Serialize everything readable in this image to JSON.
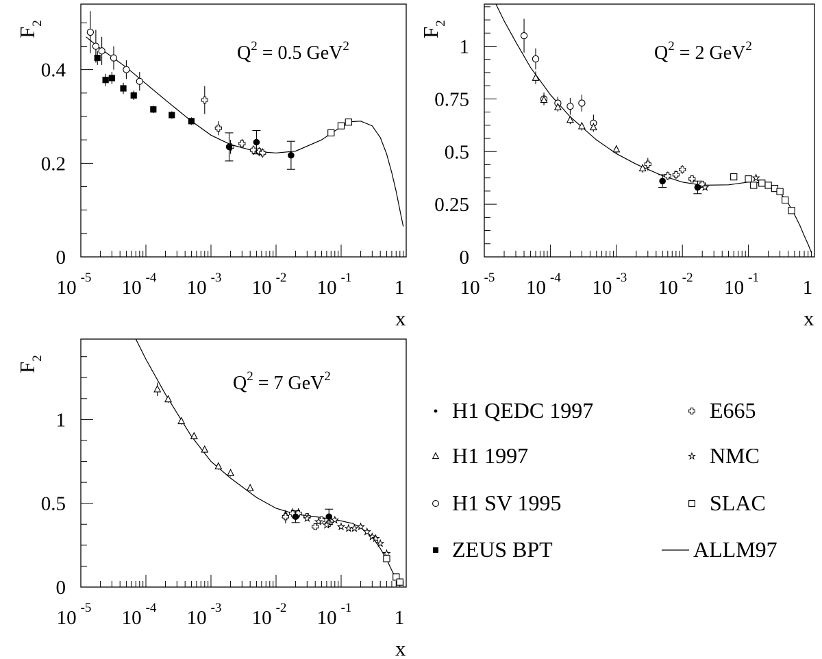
{
  "legend": [
    {
      "key": "h1qedc",
      "label": "H1 QEDC 1997",
      "symbol": "filled-circle-small"
    },
    {
      "key": "e665",
      "label": "E665",
      "symbol": "open-cross"
    },
    {
      "key": "h1_97",
      "label": "H1 1997",
      "symbol": "open-triangle"
    },
    {
      "key": "nmc",
      "label": "NMC",
      "symbol": "open-star"
    },
    {
      "key": "h1sv",
      "label": "H1 SV 1995",
      "symbol": "open-circle"
    },
    {
      "key": "slac",
      "label": "SLAC",
      "symbol": "open-square"
    },
    {
      "key": "zeus",
      "label": "ZEUS BPT",
      "symbol": "filled-square"
    },
    {
      "key": "allm",
      "label": "ALLM97",
      "symbol": "line"
    }
  ],
  "chart_data": [
    {
      "type": "scatter",
      "log_x": true,
      "xlim": [
        1e-05,
        1
      ],
      "ylim": [
        0,
        0.54
      ],
      "x_ticks": [
        {
          "exp": "-5",
          "base": "10"
        },
        {
          "exp": "-4",
          "base": "10"
        },
        {
          "exp": "-3",
          "base": "10"
        },
        {
          "exp": "-2",
          "base": "10"
        },
        {
          "exp": "-1",
          "base": "10"
        },
        {
          "exp": "",
          "base": "1"
        }
      ],
      "y_ticks": [
        {
          "v": 0,
          "label": "0"
        },
        {
          "v": 0.2,
          "label": "0.2"
        },
        {
          "v": 0.4,
          "label": "0.4"
        }
      ],
      "ylabel": {
        "main": "F",
        "sub": "2"
      },
      "xlabel": "x",
      "annotation": {
        "lhs": "Q",
        "sup1": "2",
        "mid": " = 0.5 GeV",
        "sup2": "2"
      },
      "curve": {
        "name": "ALLM97",
        "points": [
          [
            1.2e-05,
            0.47
          ],
          [
            2e-05,
            0.445
          ],
          [
            5e-05,
            0.405
          ],
          [
            0.0001,
            0.37
          ],
          [
            0.0002,
            0.335
          ],
          [
            0.0005,
            0.29
          ],
          [
            0.001,
            0.26
          ],
          [
            0.002,
            0.24
          ],
          [
            0.005,
            0.225
          ],
          [
            0.01,
            0.222
          ],
          [
            0.02,
            0.226
          ],
          [
            0.05,
            0.25
          ],
          [
            0.1,
            0.278
          ],
          [
            0.15,
            0.289
          ],
          [
            0.2,
            0.29
          ],
          [
            0.3,
            0.28
          ],
          [
            0.4,
            0.255
          ],
          [
            0.5,
            0.22
          ],
          [
            0.6,
            0.18
          ],
          [
            0.7,
            0.14
          ],
          [
            0.8,
            0.1
          ],
          [
            0.9,
            0.065
          ]
        ]
      },
      "series": [
        {
          "key": "h1sv",
          "symbol": "open-circle",
          "points": [
            [
              1.4e-05,
              0.48,
              0.045
            ],
            [
              1.7e-05,
              0.45,
              0.035
            ],
            [
              2.1e-05,
              0.44,
              0.03
            ],
            [
              3.2e-05,
              0.425,
              0.025
            ],
            [
              5e-05,
              0.4,
              0.02
            ],
            [
              8e-05,
              0.375,
              0.02
            ]
          ]
        },
        {
          "key": "zeus",
          "symbol": "filled-square",
          "points": [
            [
              1.8e-05,
              0.425,
              0.015
            ],
            [
              2.4e-05,
              0.378,
              0.013
            ],
            [
              3e-05,
              0.382,
              0.013
            ],
            [
              4.5e-05,
              0.36,
              0.012
            ],
            [
              6.5e-05,
              0.345,
              0.01
            ],
            [
              0.00013,
              0.315,
              0.008
            ],
            [
              0.00025,
              0.303,
              0.008
            ],
            [
              0.0005,
              0.29,
              0.008
            ]
          ]
        },
        {
          "key": "e665",
          "symbol": "open-cross",
          "points": [
            [
              0.0008,
              0.335,
              0.03
            ],
            [
              0.0013,
              0.275,
              0.015
            ],
            [
              0.002,
              0.235,
              0.015
            ],
            [
              0.003,
              0.242,
              0.01
            ],
            [
              0.0045,
              0.228,
              0.01
            ],
            [
              0.0055,
              0.225,
              0.01
            ],
            [
              0.0062,
              0.222,
              0.01
            ]
          ]
        },
        {
          "key": "h1qedc",
          "symbol": "filled-circle",
          "points": [
            [
              0.0019,
              0.235,
              0.03
            ],
            [
              0.005,
              0.245,
              0.025
            ],
            [
              0.017,
              0.217,
              0.03
            ]
          ]
        },
        {
          "key": "slac",
          "symbol": "open-square",
          "points": [
            [
              0.07,
              0.265,
              0.005
            ],
            [
              0.1,
              0.28,
              0.005
            ],
            [
              0.13,
              0.288,
              0.005
            ]
          ]
        }
      ]
    },
    {
      "type": "scatter",
      "log_x": true,
      "xlim": [
        1e-05,
        1
      ],
      "ylim": [
        0,
        1.2
      ],
      "x_ticks": [
        {
          "exp": "-5",
          "base": "10"
        },
        {
          "exp": "-4",
          "base": "10"
        },
        {
          "exp": "-3",
          "base": "10"
        },
        {
          "exp": "-2",
          "base": "10"
        },
        {
          "exp": "-1",
          "base": "10"
        },
        {
          "exp": "",
          "base": "1"
        }
      ],
      "y_ticks": [
        {
          "v": 0,
          "label": "0"
        },
        {
          "v": 0.25,
          "label": "0.25"
        },
        {
          "v": 0.5,
          "label": "0.5"
        },
        {
          "v": 0.75,
          "label": "0.75"
        },
        {
          "v": 1,
          "label": "1"
        }
      ],
      "ylabel": {
        "main": "F",
        "sub": "2"
      },
      "xlabel": "x",
      "annotation": {
        "lhs": "Q",
        "sup1": "2",
        "mid": " = 2 GeV",
        "sup2": "2"
      },
      "curve": {
        "name": "ALLM97",
        "points": [
          [
            1.5e-05,
            1.2
          ],
          [
            2e-05,
            1.12
          ],
          [
            3e-05,
            1.02
          ],
          [
            5e-05,
            0.9
          ],
          [
            0.0001,
            0.77
          ],
          [
            0.0002,
            0.665
          ],
          [
            0.0005,
            0.555
          ],
          [
            0.001,
            0.49
          ],
          [
            0.002,
            0.44
          ],
          [
            0.005,
            0.385
          ],
          [
            0.01,
            0.355
          ],
          [
            0.02,
            0.34
          ],
          [
            0.05,
            0.342
          ],
          [
            0.1,
            0.355
          ],
          [
            0.15,
            0.352
          ],
          [
            0.2,
            0.34
          ],
          [
            0.3,
            0.305
          ],
          [
            0.4,
            0.255
          ],
          [
            0.5,
            0.2
          ],
          [
            0.6,
            0.15
          ],
          [
            0.7,
            0.1
          ],
          [
            0.8,
            0.06
          ],
          [
            0.9,
            0.02
          ]
        ]
      },
      "series": [
        {
          "key": "h1sv",
          "symbol": "open-circle",
          "points": [
            [
              4e-05,
              1.05,
              0.08
            ],
            [
              6e-05,
              0.94,
              0.05
            ],
            [
              8e-05,
              0.75,
              0.03
            ],
            [
              0.00013,
              0.73,
              0.03
            ],
            [
              0.0002,
              0.715,
              0.04
            ],
            [
              0.0003,
              0.73,
              0.04
            ],
            [
              0.00045,
              0.635,
              0.04
            ]
          ]
        },
        {
          "key": "h1_97",
          "symbol": "open-triangle",
          "points": [
            [
              6e-05,
              0.85,
              0.03
            ],
            [
              8e-05,
              0.745,
              0.02
            ],
            [
              0.00013,
              0.71,
              0.02
            ],
            [
              0.0002,
              0.65,
              0.02
            ],
            [
              0.0003,
              0.62,
              0.02
            ],
            [
              0.00045,
              0.615,
              0.02
            ],
            [
              0.001,
              0.51,
              0.02
            ],
            [
              0.0025,
              0.42,
              0.02
            ]
          ]
        },
        {
          "key": "e665",
          "symbol": "open-cross",
          "points": [
            [
              0.003,
              0.44,
              0.03
            ],
            [
              0.006,
              0.385,
              0.02
            ],
            [
              0.008,
              0.39,
              0.02
            ],
            [
              0.01,
              0.415,
              0.02
            ],
            [
              0.014,
              0.37,
              0.015
            ],
            [
              0.02,
              0.345,
              0.015
            ]
          ]
        },
        {
          "key": "h1qedc",
          "symbol": "filled-circle",
          "points": [
            [
              0.005,
              0.36,
              0.03
            ],
            [
              0.017,
              0.33,
              0.03
            ]
          ]
        },
        {
          "key": "nmc",
          "symbol": "open-star",
          "points": [
            [
              0.022,
              0.33,
              0.01
            ],
            [
              0.13,
              0.375,
              0.01
            ]
          ]
        },
        {
          "key": "slac",
          "symbol": "open-square",
          "points": [
            [
              0.06,
              0.38,
              0.01
            ],
            [
              0.1,
              0.37,
              0.01
            ],
            [
              0.12,
              0.34,
              0.01
            ],
            [
              0.16,
              0.35,
              0.01
            ],
            [
              0.2,
              0.34,
              0.01
            ],
            [
              0.25,
              0.325,
              0.01
            ],
            [
              0.3,
              0.31,
              0.01
            ],
            [
              0.36,
              0.27,
              0.01
            ],
            [
              0.45,
              0.22,
              0.01
            ]
          ]
        }
      ]
    },
    {
      "type": "scatter",
      "log_x": true,
      "xlim": [
        1e-05,
        1
      ],
      "ylim": [
        0,
        1.48
      ],
      "x_ticks": [
        {
          "exp": "-5",
          "base": "10"
        },
        {
          "exp": "-4",
          "base": "10"
        },
        {
          "exp": "-3",
          "base": "10"
        },
        {
          "exp": "-2",
          "base": "10"
        },
        {
          "exp": "-1",
          "base": "10"
        },
        {
          "exp": "",
          "base": "1"
        }
      ],
      "y_ticks": [
        {
          "v": 0,
          "label": "0"
        },
        {
          "v": 0.5,
          "label": "0.5"
        },
        {
          "v": 1,
          "label": "1"
        }
      ],
      "ylabel": {
        "main": "F",
        "sub": "2"
      },
      "xlabel": "x",
      "annotation": {
        "lhs": "Q",
        "sup1": "2",
        "mid": " = 7 GeV",
        "sup2": "2"
      },
      "curve": {
        "name": "ALLM97",
        "points": [
          [
            7e-05,
            1.48
          ],
          [
            0.0001,
            1.36
          ],
          [
            0.0002,
            1.15
          ],
          [
            0.0005,
            0.9
          ],
          [
            0.001,
            0.75
          ],
          [
            0.002,
            0.65
          ],
          [
            0.005,
            0.535
          ],
          [
            0.01,
            0.47
          ],
          [
            0.02,
            0.435
          ],
          [
            0.05,
            0.415
          ],
          [
            0.1,
            0.395
          ],
          [
            0.15,
            0.38
          ],
          [
            0.2,
            0.355
          ],
          [
            0.3,
            0.3
          ],
          [
            0.4,
            0.23
          ],
          [
            0.5,
            0.165
          ],
          [
            0.6,
            0.1
          ],
          [
            0.7,
            0.05
          ],
          [
            0.8,
            0.015
          ]
        ]
      },
      "series": [
        {
          "key": "h1_97",
          "symbol": "open-triangle",
          "points": [
            [
              0.00015,
              1.18,
              0.04
            ],
            [
              0.00022,
              1.12,
              0.02
            ],
            [
              0.00035,
              0.99,
              0.02
            ],
            [
              0.00055,
              0.9,
              0.02
            ],
            [
              0.0008,
              0.82,
              0.02
            ],
            [
              0.0013,
              0.72,
              0.02
            ],
            [
              0.002,
              0.68,
              0.02
            ],
            [
              0.004,
              0.59,
              0.02
            ],
            [
              0.014,
              0.43,
              0.02
            ],
            [
              0.02,
              0.43,
              0.02
            ]
          ]
        },
        {
          "key": "e665",
          "symbol": "open-cross",
          "points": [
            [
              0.014,
              0.42,
              0.04
            ],
            [
              0.018,
              0.44,
              0.03
            ],
            [
              0.022,
              0.44,
              0.03
            ],
            [
              0.03,
              0.42,
              0.02
            ],
            [
              0.04,
              0.36,
              0.02
            ],
            [
              0.05,
              0.4,
              0.02
            ],
            [
              0.065,
              0.38,
              0.02
            ]
          ]
        },
        {
          "key": "h1qedc",
          "symbol": "filled-circle",
          "points": [
            [
              0.02,
              0.42,
              0.035
            ],
            [
              0.065,
              0.42,
              0.045
            ]
          ]
        },
        {
          "key": "nmc",
          "symbol": "open-star",
          "points": [
            [
              0.03,
              0.41,
              0.01
            ],
            [
              0.045,
              0.39,
              0.01
            ],
            [
              0.06,
              0.37,
              0.01
            ],
            [
              0.08,
              0.4,
              0.01
            ],
            [
              0.1,
              0.36,
              0.01
            ],
            [
              0.13,
              0.35,
              0.01
            ],
            [
              0.16,
              0.35,
              0.01
            ],
            [
              0.2,
              0.36,
              0.01
            ],
            [
              0.25,
              0.33,
              0.01
            ],
            [
              0.3,
              0.3,
              0.01
            ],
            [
              0.34,
              0.29,
              0.01
            ],
            [
              0.4,
              0.26,
              0.01
            ],
            [
              0.5,
              0.2,
              0.01
            ]
          ]
        },
        {
          "key": "slac",
          "symbol": "open-square",
          "points": [
            [
              0.5,
              0.17,
              0.01
            ],
            [
              0.7,
              0.06,
              0.01
            ],
            [
              0.8,
              0.03,
              0.01
            ]
          ]
        }
      ]
    }
  ]
}
